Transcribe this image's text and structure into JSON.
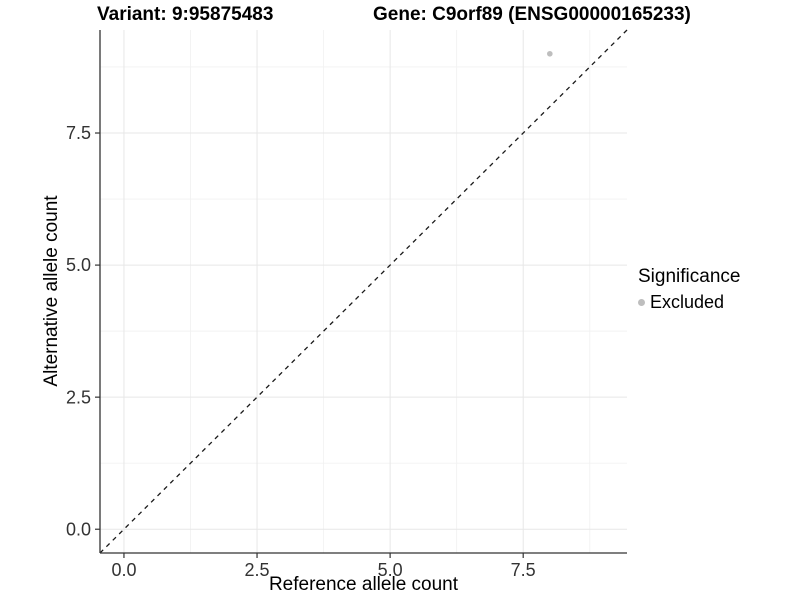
{
  "figure": {
    "title_variant": "Variant: 9:95875483",
    "title_gene": "Gene: C9orf89 (ENSG00000165233)"
  },
  "chart_data": {
    "type": "scatter",
    "title": "Variant: 9:95875483 — Gene: C9orf89 (ENSG00000165233)",
    "xlabel": "Reference allele count",
    "ylabel": "Alternative allele count",
    "xlim": [
      -0.45,
      9.45
    ],
    "ylim": [
      -0.45,
      9.45
    ],
    "x_major_ticks": [
      0,
      2.5,
      5,
      7.5
    ],
    "y_major_ticks": [
      0,
      2.5,
      5,
      7.5
    ],
    "x_minor_ticks": [
      1.25,
      3.75,
      6.25,
      8.75
    ],
    "y_minor_ticks": [
      1.25,
      3.75,
      6.25,
      8.75
    ],
    "tick_label_decimals": 1,
    "grid": "major+minor",
    "legend_position": "right",
    "series": [
      {
        "name": "Excluded",
        "color": "#bebebe",
        "point_radius": 2.8,
        "points": [
          {
            "x": 8,
            "y": 9
          }
        ]
      }
    ],
    "reference_line": {
      "kind": "identity y=x",
      "style": "dashed",
      "color": "#1a1a1a"
    }
  },
  "legend": {
    "title": "Significance",
    "items": [
      {
        "label": "Excluded",
        "color": "#bebebe"
      }
    ]
  },
  "colors": {
    "background": "#ffffff",
    "axis_line": "#333333",
    "tick_label": "#333333",
    "grid_major": "#e7e7e7",
    "grid_minor": "#f2f2f2"
  }
}
